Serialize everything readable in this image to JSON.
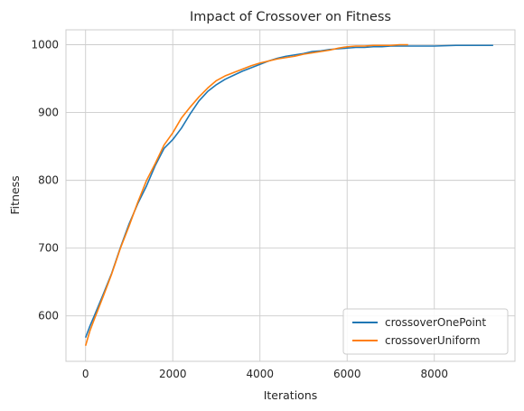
{
  "chart_data": {
    "type": "line",
    "title": "Impact of Crossover on Fitness",
    "xlabel": "Iterations",
    "ylabel": "Fitness",
    "xlim": [
      -450,
      9850
    ],
    "ylim": [
      533,
      1022
    ],
    "xticks": [
      0,
      2000,
      4000,
      6000,
      8000
    ],
    "yticks": [
      600,
      700,
      800,
      900,
      1000
    ],
    "x_tick_labels": [
      "0",
      "2000",
      "4000",
      "6000",
      "8000"
    ],
    "y_tick_labels": [
      "600",
      "700",
      "800",
      "900",
      "1000"
    ],
    "grid": true,
    "legend_position": "lower-right",
    "series": [
      {
        "name": "crossoverOnePoint",
        "color": "#1f77b4",
        "x": [
          0,
          100,
          200,
          400,
          600,
          800,
          1000,
          1200,
          1400,
          1600,
          1800,
          2000,
          2200,
          2400,
          2600,
          2800,
          3000,
          3200,
          3400,
          3600,
          3800,
          4000,
          4200,
          4400,
          4600,
          4800,
          5000,
          5200,
          5400,
          5600,
          5800,
          6000,
          6200,
          6400,
          6600,
          6800,
          7000,
          7500,
          8000,
          8500,
          9000,
          9350
        ],
        "y": [
          568,
          585,
          600,
          631,
          663,
          701,
          736,
          766,
          792,
          822,
          847,
          860,
          877,
          898,
          917,
          931,
          941,
          949,
          955,
          961,
          966,
          971,
          976,
          980,
          983,
          985,
          987,
          990,
          991,
          993,
          994,
          995,
          996,
          996,
          997,
          997,
          998,
          998,
          998,
          999,
          999,
          999
        ]
      },
      {
        "name": "crossoverUniform",
        "color": "#ff7f0e",
        "x": [
          0,
          100,
          200,
          400,
          600,
          800,
          1000,
          1200,
          1400,
          1600,
          1800,
          2000,
          2200,
          2400,
          2600,
          2800,
          3000,
          3200,
          3400,
          3600,
          3800,
          4000,
          4200,
          4400,
          4600,
          4800,
          5000,
          5200,
          5400,
          5600,
          5800,
          6000,
          6200,
          6400,
          6600,
          6800,
          7000,
          7200,
          7400
        ],
        "y": [
          556,
          578,
          595,
          628,
          662,
          700,
          733,
          768,
          800,
          825,
          852,
          870,
          892,
          908,
          923,
          936,
          947,
          954,
          959,
          964,
          969,
          973,
          976,
          979,
          981,
          983,
          986,
          988,
          990,
          992,
          995,
          997,
          998,
          998,
          999,
          999,
          999,
          1000,
          1000
        ]
      }
    ]
  }
}
